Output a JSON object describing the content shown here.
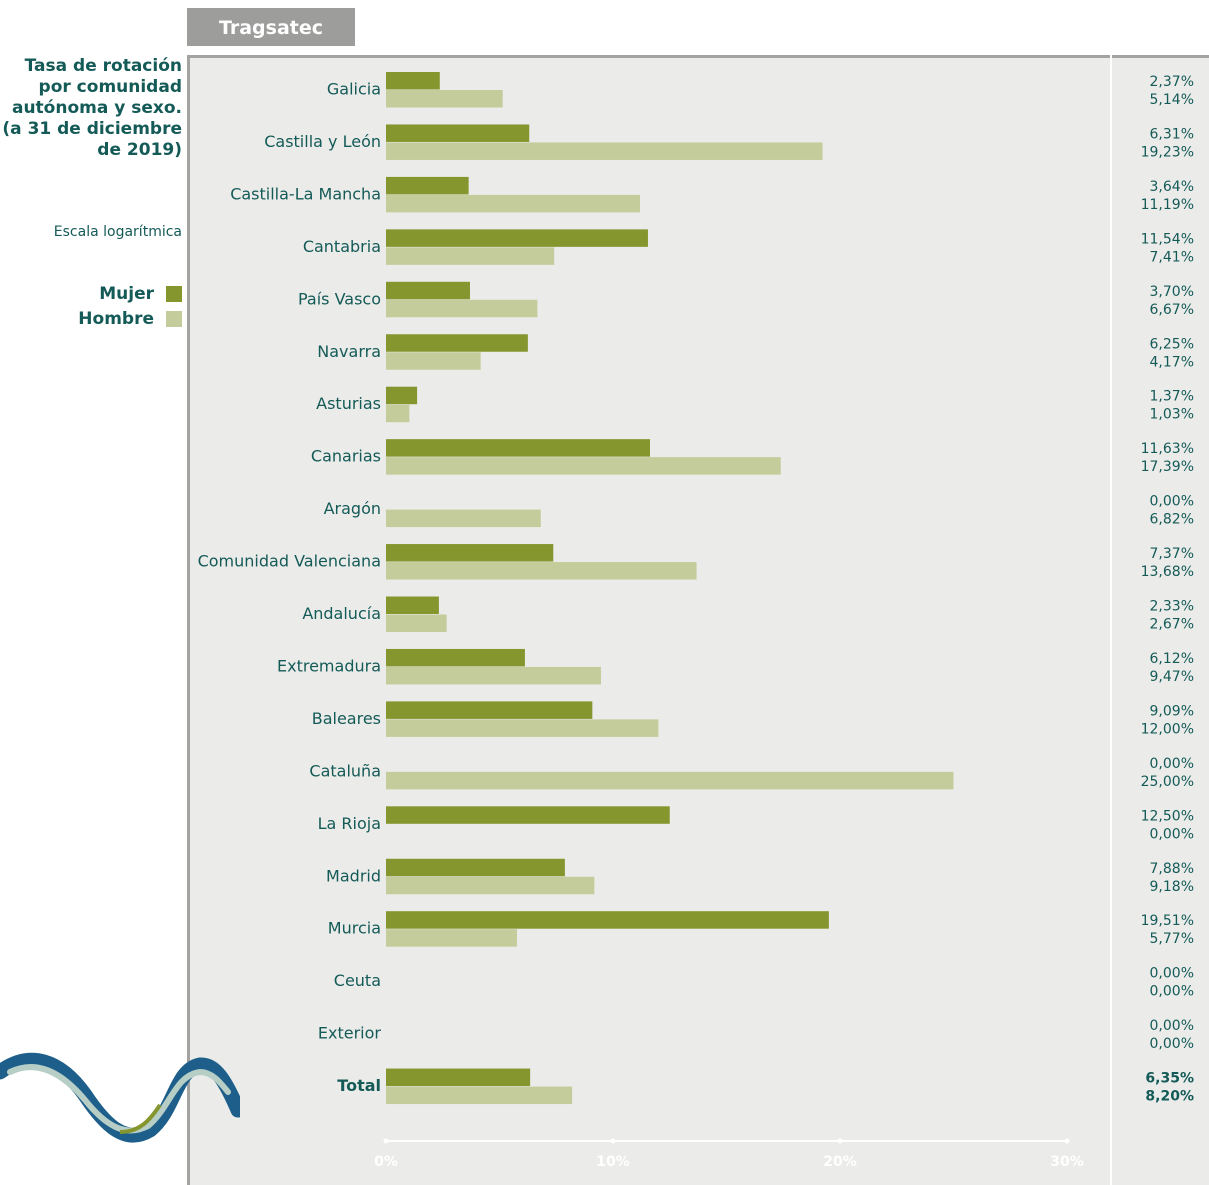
{
  "header": {
    "tab_label": "Tragsatec"
  },
  "sidebar": {
    "title_lines": [
      "Tasa de rotación",
      "por comunidad",
      "autónoma y sexo.",
      "(a 31 de diciembre",
      "de 2019)"
    ],
    "scale_note": "Escala logarítmica",
    "legend": [
      {
        "label": "Mujer",
        "color": "#85962f"
      },
      {
        "label": "Hombre",
        "color": "#c5cc9b"
      }
    ]
  },
  "chart_data": {
    "type": "bar",
    "orientation": "horizontal",
    "categories": [
      "Galicia",
      "Castilla y León",
      "Castilla-La Mancha",
      "Cantabria",
      "País Vasco",
      "Navarra",
      "Asturias",
      "Canarias",
      "Aragón",
      "Comunidad Valenciana",
      "Andalucía",
      "Extremadura",
      "Baleares",
      "Cataluña",
      "La Rioja",
      "Madrid",
      "Murcia",
      "Ceuta",
      "Exterior",
      "Total"
    ],
    "series": [
      {
        "name": "Mujer",
        "color": "#85962f",
        "values": [
          2.37,
          6.31,
          3.64,
          11.54,
          3.7,
          6.25,
          1.37,
          11.63,
          0.0,
          7.37,
          2.33,
          6.12,
          9.09,
          0.0,
          12.5,
          7.88,
          19.51,
          0.0,
          0.0,
          6.35
        ],
        "value_labels": [
          "2,37%",
          "6,31%",
          "3,64%",
          "11,54%",
          "3,70%",
          "6,25%",
          "1,37%",
          "11,63%",
          "0,00%",
          "7,37%",
          "2,33%",
          "6,12%",
          "9,09%",
          "0,00%",
          "12,50%",
          "7,88%",
          "19,51%",
          "0,00%",
          "0,00%",
          "6,35%"
        ]
      },
      {
        "name": "Hombre",
        "color": "#c5cc9b",
        "values": [
          5.14,
          19.23,
          11.19,
          7.41,
          6.67,
          4.17,
          1.03,
          17.39,
          6.82,
          13.68,
          2.67,
          9.47,
          12.0,
          25.0,
          0.0,
          9.18,
          5.77,
          0.0,
          0.0,
          8.2
        ],
        "value_labels": [
          "5,14%",
          "19,23%",
          "11,19%",
          "7,41%",
          "6,67%",
          "4,17%",
          "1,03%",
          "17,39%",
          "6,82%",
          "13,68%",
          "2,67%",
          "9,47%",
          "12,00%",
          "25,00%",
          "0,00%",
          "9,18%",
          "5,77%",
          "0,00%",
          "0,00%",
          "8,20%"
        ]
      }
    ],
    "x_ticks": [
      0,
      10,
      20,
      30
    ],
    "x_tick_labels": [
      "0%",
      "10%",
      "20%",
      "30%"
    ],
    "xlim": [
      0,
      30
    ],
    "label_color": "#145a57",
    "tick_color": "#ffffff",
    "grid": false,
    "legend_position": "left"
  }
}
